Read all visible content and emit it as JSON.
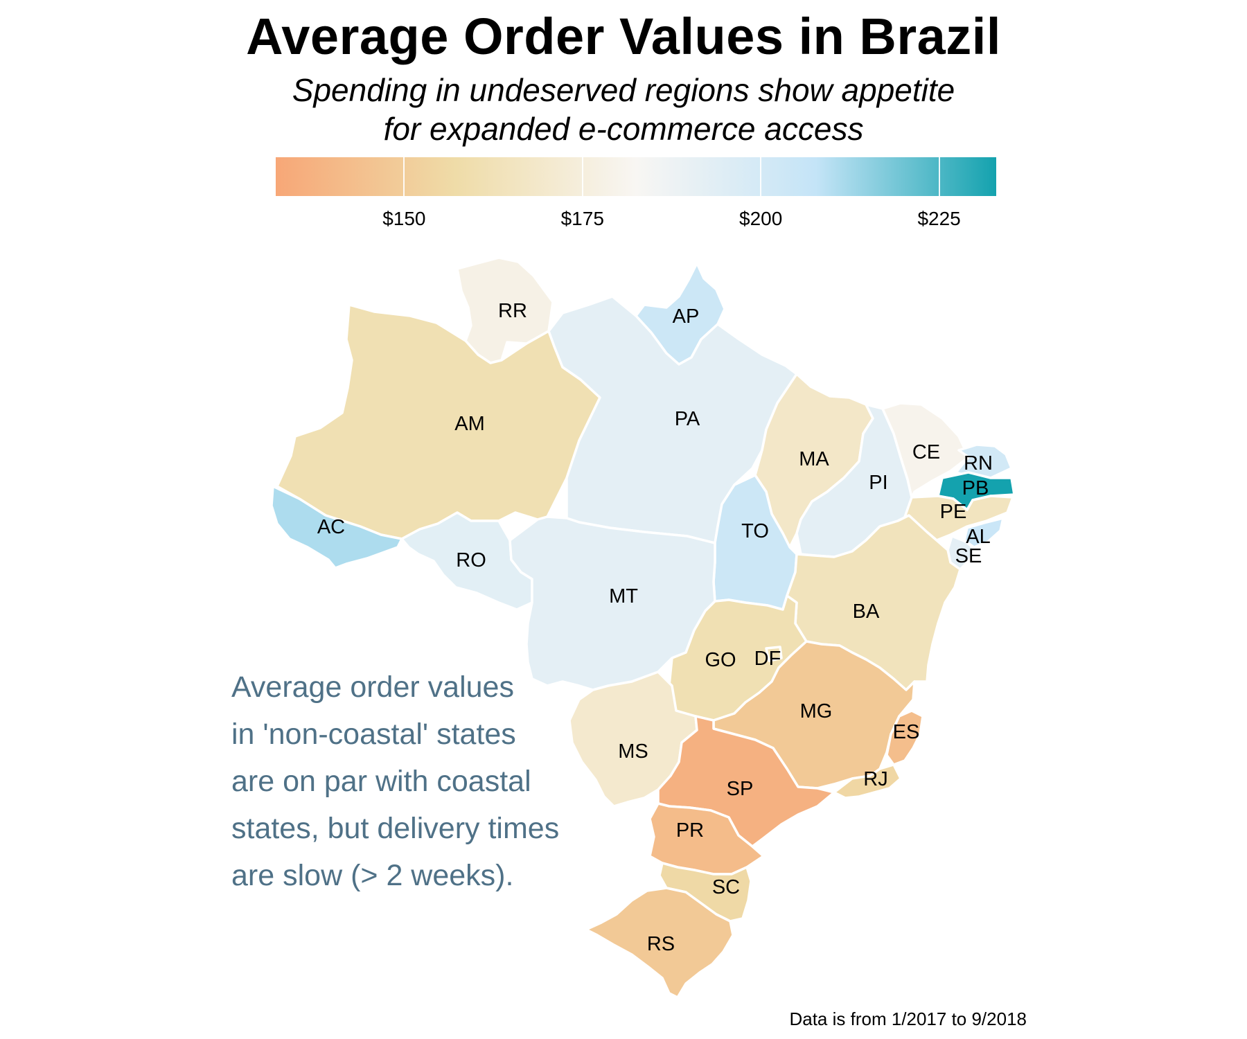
{
  "title": "Average Order Values in Brazil",
  "subtitle_line1": "Spending in undeserved regions show appetite",
  "subtitle_line2": "for expanded e-commerce access",
  "legend": {
    "min": 132,
    "max": 233,
    "ticks": [
      {
        "value": 150,
        "label": "$150"
      },
      {
        "value": 175,
        "label": "$175"
      },
      {
        "value": 200,
        "label": "$200"
      },
      {
        "value": 225,
        "label": "$225"
      }
    ],
    "colors": [
      "#f7a777",
      "#efdca8",
      "#f8f6f3",
      "#c4e4f7",
      "#14a2ae"
    ]
  },
  "annotation": [
    "Average order values",
    "in 'non-coastal' states",
    "are on par with coastal",
    "states, but delivery times",
    "are slow (> 2 weeks)."
  ],
  "source": "Data is from 1/2017 to 9/2018",
  "states": [
    {
      "code": "RR",
      "label": "RR",
      "value": 178
    },
    {
      "code": "AP",
      "label": "AP",
      "value": 204
    },
    {
      "code": "AM",
      "label": "AM",
      "value": 161
    },
    {
      "code": "PA",
      "label": "PA",
      "value": 192
    },
    {
      "code": "MA",
      "label": "MA",
      "value": 168
    },
    {
      "code": "PI",
      "label": "PI",
      "value": 192
    },
    {
      "code": "CE",
      "label": "CE",
      "value": 180
    },
    {
      "code": "RN",
      "label": "RN",
      "value": 201
    },
    {
      "code": "PB",
      "label": "PB",
      "value": 233
    },
    {
      "code": "PE",
      "label": "PE",
      "value": 165
    },
    {
      "code": "AL",
      "label": "AL",
      "value": 205
    },
    {
      "code": "SE",
      "label": "SE",
      "value": 192
    },
    {
      "code": "AC",
      "label": "AC",
      "value": 211
    },
    {
      "code": "RO",
      "label": "RO",
      "value": 193
    },
    {
      "code": "TO",
      "label": "TO",
      "value": 204
    },
    {
      "code": "MT",
      "label": "MT",
      "value": 192
    },
    {
      "code": "BA",
      "label": "BA",
      "value": 164
    },
    {
      "code": "GO",
      "label": "GO",
      "value": 161
    },
    {
      "code": "DF",
      "label": "DF",
      "value": 161
    },
    {
      "code": "MG",
      "label": "MG",
      "value": 148
    },
    {
      "code": "ES",
      "label": "ES",
      "value": 143
    },
    {
      "code": "RJ",
      "label": "RJ",
      "value": 155
    },
    {
      "code": "MS",
      "label": "MS",
      "value": 170
    },
    {
      "code": "SP",
      "label": "SP",
      "value": 137
    },
    {
      "code": "PR",
      "label": "PR",
      "value": 142
    },
    {
      "code": "SC",
      "label": "SC",
      "value": 156
    },
    {
      "code": "RS",
      "label": "RS",
      "value": 148
    }
  ]
}
